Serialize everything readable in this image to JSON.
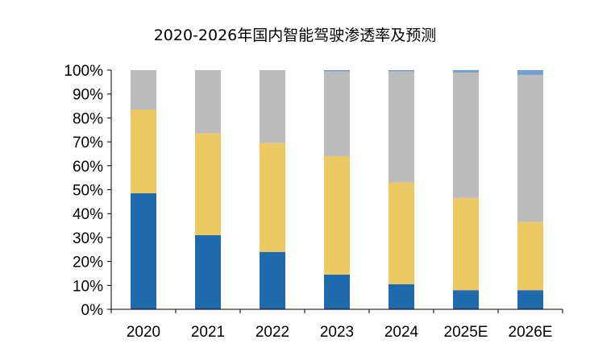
{
  "chart_data": {
    "type": "bar",
    "stacked": true,
    "title": "2020-2026年国内智能驾驶渗透率及预测",
    "categories": [
      "2020",
      "2021",
      "2022",
      "2023",
      "2024",
      "2025E",
      "2026E"
    ],
    "yticks": [
      "0%",
      "10%",
      "20%",
      "30%",
      "40%",
      "50%",
      "60%",
      "70%",
      "80%",
      "90%",
      "100%"
    ],
    "ylim": [
      0,
      100
    ],
    "grid": false,
    "legend": "none",
    "series": [
      {
        "color": "#1f6aad",
        "values": [
          48.5,
          31,
          24,
          14.5,
          10.5,
          8,
          8
        ]
      },
      {
        "color": "#ecc962",
        "values": [
          35,
          42.5,
          45.5,
          49.5,
          42.5,
          38.5,
          28.5
        ]
      },
      {
        "color": "#bcbcbc",
        "values": [
          16.5,
          26.5,
          30.5,
          35.5,
          46.5,
          52.5,
          61.5
        ]
      },
      {
        "color": "#6f9fd6",
        "values": [
          0,
          0,
          0,
          0.5,
          0.5,
          1,
          2
        ]
      }
    ]
  }
}
